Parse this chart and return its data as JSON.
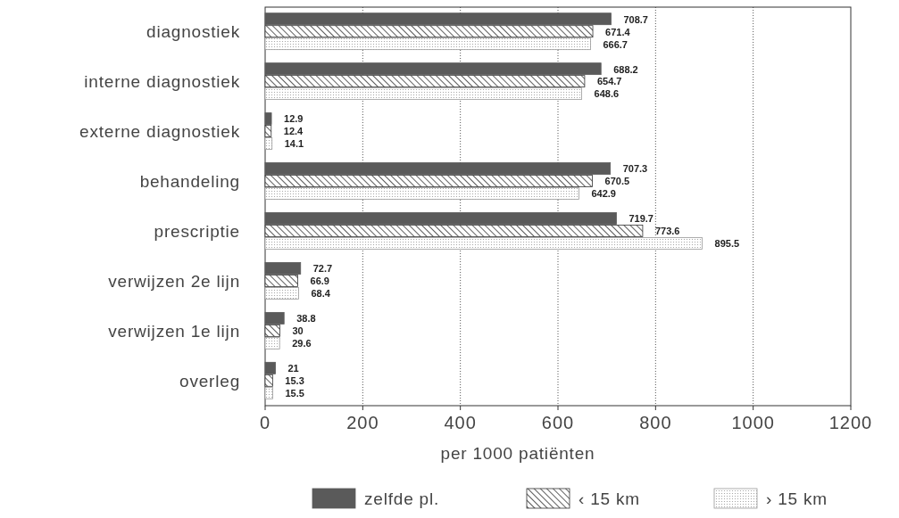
{
  "chart_data": {
    "type": "bar",
    "orientation": "horizontal",
    "xlabel": "per 1000 patiënten",
    "categories": [
      "diagnostiek",
      "interne diagnostiek",
      "externe diagnostiek",
      "behandeling",
      "prescriptie",
      "verwijzen 2e lijn",
      "verwijzen 1e lijn",
      "overleg"
    ],
    "series": [
      {
        "name": "zelfde pl.",
        "color": "#5a5a5a",
        "values": [
          708.7,
          688.2,
          12.9,
          707.3,
          719.7,
          72.7,
          38.8,
          21
        ]
      },
      {
        "name": "‹ 15 km",
        "color": "#333333",
        "values": [
          671.4,
          654.7,
          12.4,
          670.5,
          773.6,
          66.9,
          30,
          15.3
        ]
      },
      {
        "name": "› 15 km",
        "color": "#999999",
        "values": [
          666.7,
          648.6,
          14.1,
          642.9,
          895.5,
          68.4,
          29.6,
          15.5
        ]
      }
    ],
    "xlim": [
      0,
      1200
    ],
    "xticks": [
      0,
      200,
      400,
      600,
      800,
      1000,
      1200
    ],
    "grid": "x",
    "legend": "bottom",
    "data_labels": true
  }
}
